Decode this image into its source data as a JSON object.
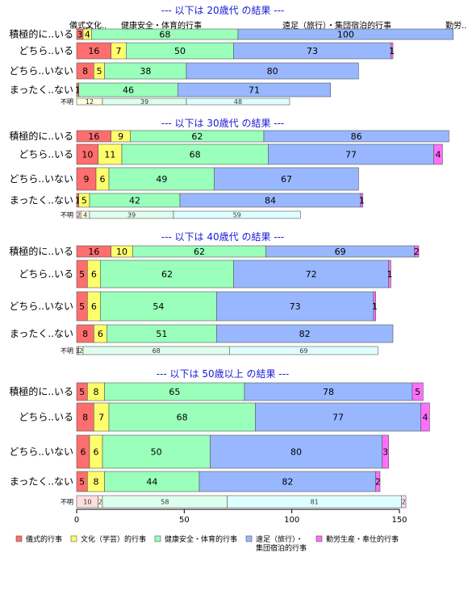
{
  "chart_data": {
    "type": "bar",
    "orientation": "horizontal",
    "stacked": true,
    "series_names": [
      "儀式的行事",
      "文化（学芸）的行事",
      "健康安全・体育的行事",
      "遠足（旅行）・集団宿泊的行事",
      "勤労生産・奉仕的行事"
    ],
    "header_labels": [
      "儀式..",
      "文化..",
      "健康安全・体育的行事",
      "遠足（旅行）・集団宿泊的行事",
      "勤労.."
    ],
    "colors": [
      "#ff6e6e",
      "#ffff6e",
      "#99ffbb",
      "#99b7ff",
      "#ff6eff"
    ],
    "colors_light": [
      "#ffdede",
      "#ffffde",
      "#deffee",
      "#deffff",
      "#ffdeff"
    ],
    "xlim": [
      0,
      150
    ],
    "x_ticks": [
      0,
      50,
      100,
      150
    ],
    "grid": false,
    "legend_position": "bottom",
    "legend_labels": [
      "儀式的行事",
      "文化（学芸）的行事",
      "健康安全・体育的行事",
      "遠足（旅行）・",
      "集団宿泊的行事",
      "勤労生産・奉仕的行事"
    ],
    "panels": [
      {
        "title": "--- 以下は 20歳代 の結果 ---",
        "categories": [
          "積極的に..いる",
          "どちら..いる",
          "どちら..いない",
          "まったく..ない",
          "不明"
        ],
        "values": [
          [
            3,
            4,
            68,
            100,
            0
          ],
          [
            16,
            7,
            50,
            73,
            1
          ],
          [
            8,
            5,
            38,
            80,
            0
          ],
          [
            1,
            0,
            46,
            71,
            0
          ],
          [
            0,
            12,
            39,
            48,
            0
          ]
        ]
      },
      {
        "title": "--- 以下は 30歳代 の結果 ---",
        "categories": [
          "積極的に..いる",
          "どちら..いる",
          "どちら..いない",
          "まったく..ない",
          "不明"
        ],
        "values": [
          [
            16,
            9,
            62,
            86,
            0
          ],
          [
            10,
            11,
            68,
            77,
            4
          ],
          [
            9,
            6,
            49,
            67,
            0
          ],
          [
            1,
            5,
            42,
            84,
            1
          ],
          [
            2,
            4,
            39,
            59,
            0
          ]
        ]
      },
      {
        "title": "--- 以下は 40歳代 の結果 ---",
        "categories": [
          "積極的に..いる",
          "どちら..いる",
          "どちら..いない",
          "まったく..ない",
          "不明"
        ],
        "values": [
          [
            16,
            10,
            62,
            69,
            2
          ],
          [
            5,
            6,
            62,
            72,
            1
          ],
          [
            5,
            6,
            54,
            73,
            1
          ],
          [
            8,
            6,
            51,
            82,
            0
          ],
          [
            1,
            2,
            68,
            69,
            0
          ]
        ]
      },
      {
        "title": "--- 以下は 50歳以上 の結果 ---",
        "categories": [
          "積極的に..いる",
          "どちら..いる",
          "どちら..いない",
          "まったく..ない",
          "不明"
        ],
        "values": [
          [
            5,
            8,
            65,
            78,
            5
          ],
          [
            8,
            7,
            68,
            77,
            4
          ],
          [
            6,
            6,
            50,
            80,
            3
          ],
          [
            5,
            8,
            44,
            82,
            2
          ],
          [
            10,
            2,
            58,
            81,
            2
          ]
        ]
      }
    ]
  }
}
